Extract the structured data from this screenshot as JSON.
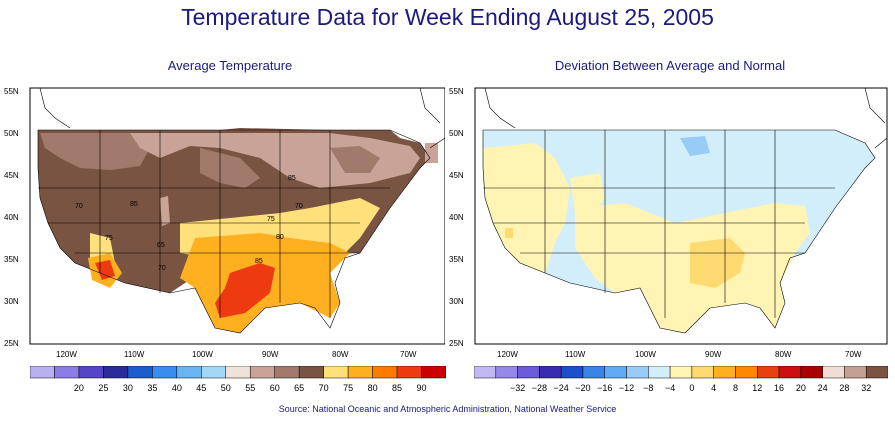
{
  "title": "Temperature Data for Week Ending August 25, 2005",
  "source": "Source:  National Oceanic and Atmospheric Administration, National Weather Service",
  "panels": [
    {
      "subtitle": "Average Temperature",
      "lat_labels": [
        "55N",
        "50N",
        "45N",
        "40N",
        "35N",
        "30N",
        "25N"
      ],
      "lon_labels": [
        "120W",
        "110W",
        "100W",
        "90W",
        "80W",
        "70W"
      ],
      "contour_labels": [
        "85",
        "70",
        "85",
        "75",
        "65",
        "70",
        "85",
        "80",
        "75",
        "70"
      ],
      "colorbar": {
        "labels": [
          "20",
          "25",
          "30",
          "35",
          "40",
          "45",
          "50",
          "55",
          "60",
          "65",
          "70",
          "75",
          "80",
          "85",
          "90"
        ],
        "colors": [
          "#b9b0f0",
          "#8a7ee6",
          "#5546c8",
          "#2a2a9a",
          "#1a5ccc",
          "#3a8cf0",
          "#6ab4f2",
          "#a2d8f6",
          "#efe2d8",
          "#c9a397",
          "#a17a6c",
          "#7a5442",
          "#ffe07a",
          "#ffb020",
          "#ff7a00",
          "#ee3a10",
          "#cc0000"
        ]
      }
    },
    {
      "subtitle": "Deviation Between Average and Normal",
      "lat_labels": [
        "55N",
        "50N",
        "45N",
        "40N",
        "35N",
        "30N",
        "25N"
      ],
      "lon_labels": [
        "120W",
        "110W",
        "100W",
        "90W",
        "80W",
        "70W"
      ],
      "colorbar": {
        "labels": [
          "−32",
          "−28",
          "−24",
          "−20",
          "−16",
          "−12",
          "−8",
          "−4",
          "0",
          "4",
          "8",
          "12",
          "16",
          "20",
          "24",
          "28",
          "32"
        ],
        "colors": [
          "#c2b8f2",
          "#9488e8",
          "#6a5cd8",
          "#3a2cb0",
          "#1a50cc",
          "#3a84e8",
          "#62aaf2",
          "#98ccf6",
          "#d2eefa",
          "#fff4b4",
          "#ffda70",
          "#ffb020",
          "#ff8800",
          "#e84010",
          "#cc1010",
          "#aa0000",
          "#f0dcd2",
          "#c4a090",
          "#7a5442"
        ]
      }
    }
  ]
}
